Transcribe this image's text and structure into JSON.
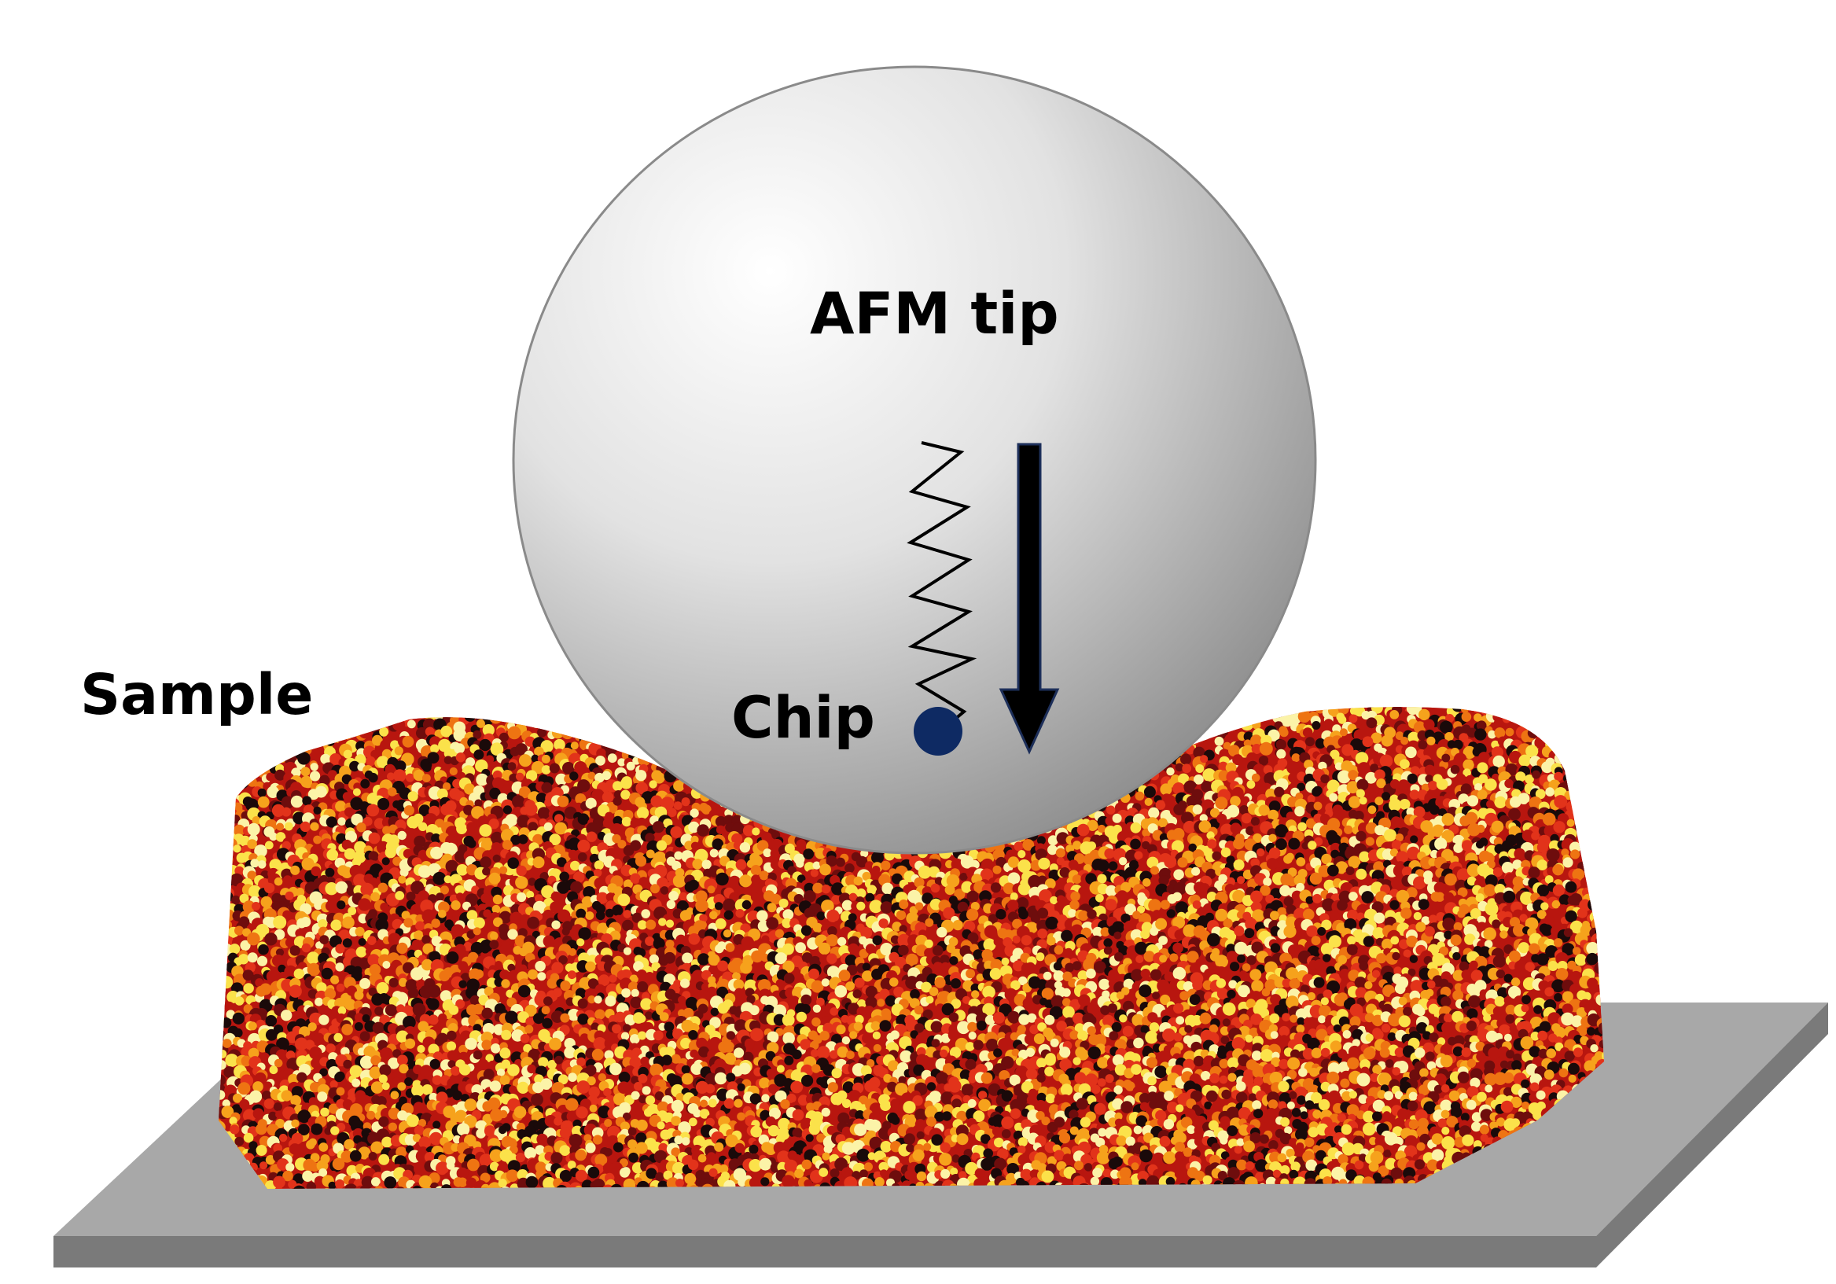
{
  "labels": {
    "afm_tip": "AFM tip",
    "sample": "Sample",
    "chip": "Chip"
  },
  "colors": {
    "background": "#ffffff",
    "substrate_top": "#a8a8a8",
    "substrate_edge": "#7a7a7a",
    "sphere_highlight": "#ffffff",
    "sphere_mid": "#e2e2e2",
    "sphere_shadow": "#8c8c8c",
    "chip_dot": "#0e2a63",
    "arrow": "#000000",
    "arrow_outline": "#1d2f5a",
    "spring": "#000000",
    "bead_palette": [
      "#1a0a0a",
      "#6e0d0d",
      "#b8160f",
      "#e2331a",
      "#ee7412",
      "#f6a21c",
      "#fbe24a",
      "#fbf3a8"
    ]
  },
  "icons": {
    "spring": "zigzag-spring-icon",
    "force_arrow": "down-arrow-icon",
    "chip": "filled-circle-icon"
  }
}
